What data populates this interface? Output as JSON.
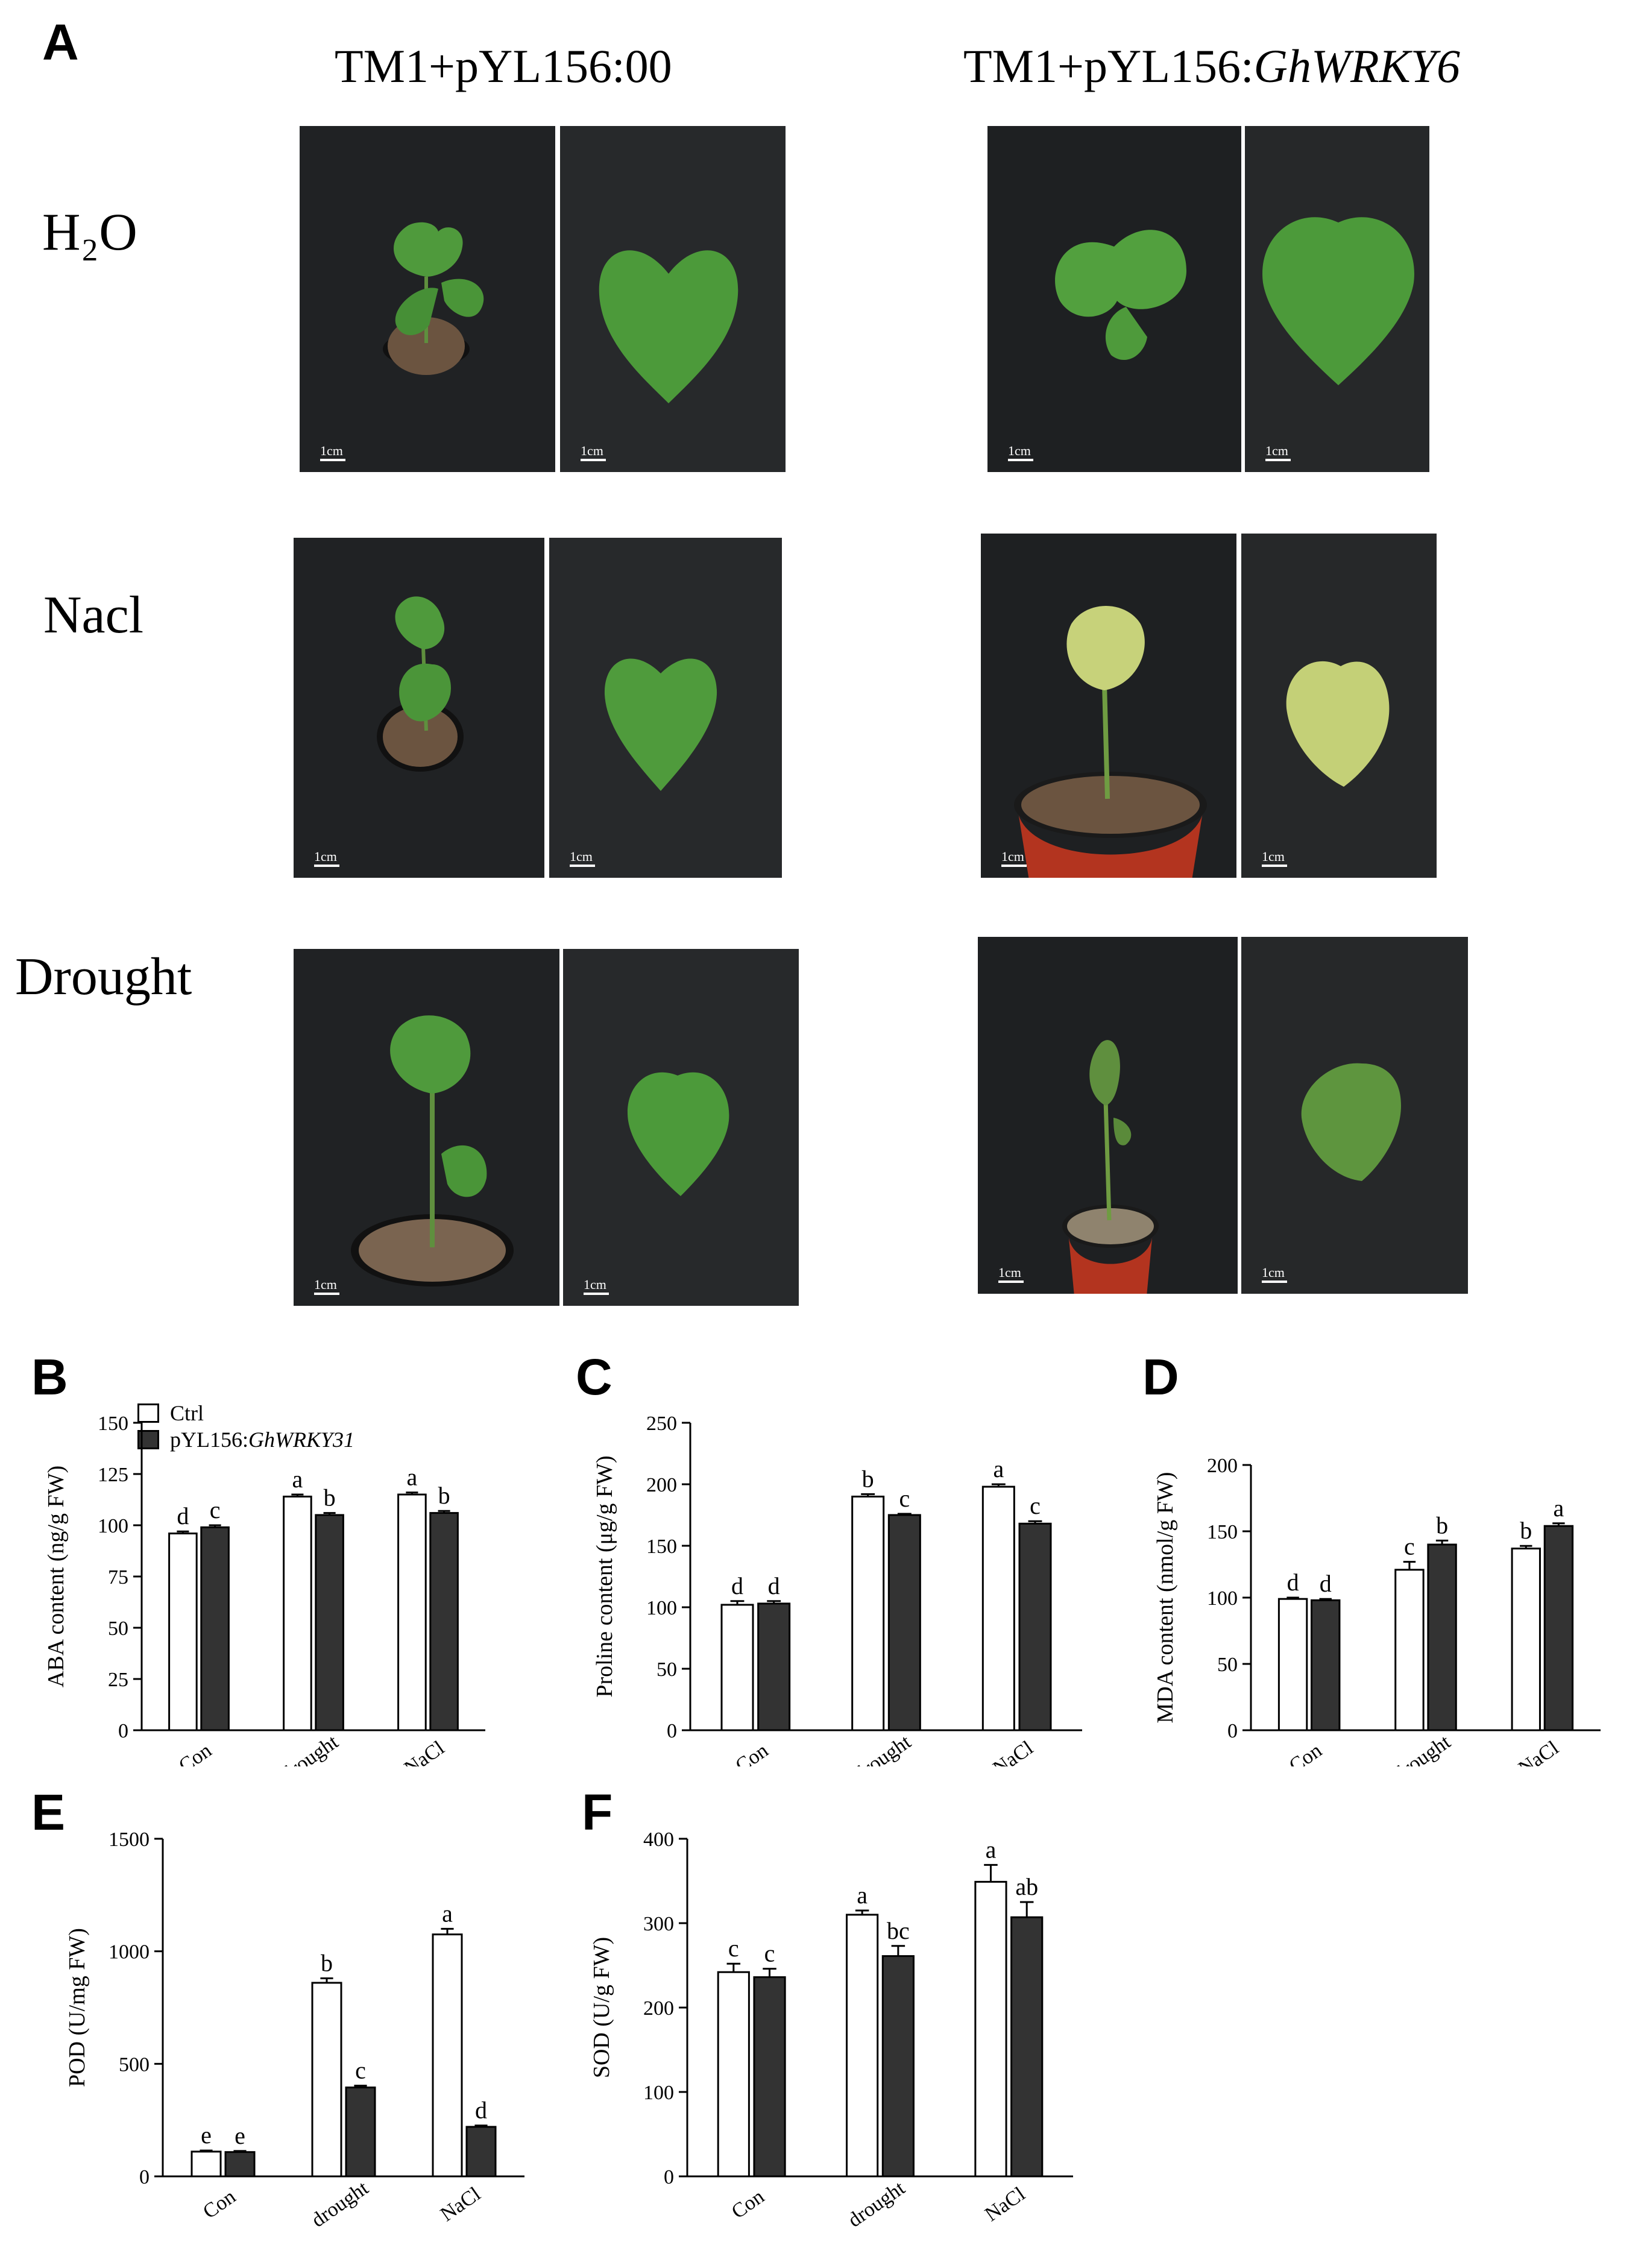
{
  "panel_labels": {
    "A": "A",
    "B": "B",
    "C": "C",
    "D": "D",
    "E": "E",
    "F": "F"
  },
  "figure_A": {
    "column_headers": [
      "TM1+pYL156:00",
      "TM1+pYL156:"
    ],
    "column_header_italic": "GhWRKY6",
    "row_headers": [
      "H₂O",
      "Nacl",
      "Drought"
    ],
    "scale_bar_label": "1cm",
    "photo_colors": {
      "background": "#1f2123",
      "leaf_healthy": "#4f9a3c",
      "leaf_chlorotic": "#c7d27a",
      "leaf_wilted": "#5f8f3e",
      "soil": "#6b5440",
      "pot": "#1b1b1b",
      "pot_red": "#b3341f"
    }
  },
  "legend": {
    "ctrl_label": "Ctrl",
    "treat_prefix": "pYL156:",
    "treat_italic": "GhWRKY31",
    "ctrl_color": "#ffffff",
    "treat_color": "#333333"
  },
  "chart_data": [
    {
      "id": "B",
      "type": "bar",
      "categories": [
        "Con",
        "drought",
        "NaCl"
      ],
      "series": [
        {
          "name": "Ctrl",
          "values": [
            96,
            114,
            115
          ],
          "errors": [
            1,
            1,
            1
          ],
          "letters": [
            "d",
            "a",
            "a"
          ]
        },
        {
          "name": "pYL156:GhWRKY31",
          "values": [
            99,
            105,
            106
          ],
          "errors": [
            1,
            1,
            1
          ],
          "letters": [
            "c",
            "b",
            "b"
          ]
        }
      ],
      "ylabel": "ABA content (ng/g FW)",
      "ylim": [
        0,
        150
      ],
      "yticks": [
        0,
        25,
        50,
        75,
        100,
        125,
        150
      ]
    },
    {
      "id": "C",
      "type": "bar",
      "categories": [
        "Con",
        "drought",
        "NaCl"
      ],
      "series": [
        {
          "name": "Ctrl",
          "values": [
            102,
            190,
            198
          ],
          "errors": [
            3,
            2,
            2
          ],
          "letters": [
            "d",
            "b",
            "a"
          ]
        },
        {
          "name": "pYL156:GhWRKY31",
          "values": [
            103,
            175,
            168
          ],
          "errors": [
            2,
            1,
            2
          ],
          "letters": [
            "d",
            "c",
            "c"
          ]
        }
      ],
      "ylabel": "Proline content (μg/g FW)",
      "ylim": [
        0,
        250
      ],
      "yticks": [
        0,
        50,
        100,
        150,
        200,
        250
      ]
    },
    {
      "id": "D",
      "type": "bar",
      "categories": [
        "Con",
        "drought",
        "NaCl"
      ],
      "series": [
        {
          "name": "Ctrl",
          "values": [
            99,
            121,
            137
          ],
          "errors": [
            1,
            6,
            2
          ],
          "letters": [
            "d",
            "c",
            "b"
          ]
        },
        {
          "name": "pYL156:GhWRKY31",
          "values": [
            98,
            140,
            154
          ],
          "errors": [
            1,
            3,
            2
          ],
          "letters": [
            "d",
            "b",
            "a"
          ]
        }
      ],
      "ylabel": "MDA content (nmol/g FW)",
      "ylim": [
        0,
        200
      ],
      "yticks": [
        0,
        50,
        100,
        150,
        200
      ]
    },
    {
      "id": "E",
      "type": "bar",
      "categories": [
        "Con",
        "drought",
        "NaCl"
      ],
      "series": [
        {
          "name": "Ctrl",
          "values": [
            110,
            860,
            1075
          ],
          "errors": [
            5,
            20,
            25
          ],
          "letters": [
            "e",
            "b",
            "a"
          ]
        },
        {
          "name": "pYL156:GhWRKY31",
          "values": [
            108,
            395,
            220
          ],
          "errors": [
            5,
            8,
            6
          ],
          "letters": [
            "e",
            "c",
            "d"
          ]
        }
      ],
      "ylabel": "POD (U/mg FW)",
      "ylim": [
        0,
        1500
      ],
      "yticks": [
        0,
        500,
        1000,
        1500
      ]
    },
    {
      "id": "F",
      "type": "bar",
      "categories": [
        "Con",
        "drought",
        "NaCl"
      ],
      "series": [
        {
          "name": "Ctrl",
          "values": [
            242,
            310,
            349
          ],
          "errors": [
            10,
            5,
            20
          ],
          "letters": [
            "c",
            "a",
            "a"
          ]
        },
        {
          "name": "pYL156:GhWRKY31",
          "values": [
            236,
            261,
            307
          ],
          "errors": [
            10,
            12,
            18
          ],
          "letters": [
            "c",
            "bc",
            "ab"
          ]
        }
      ],
      "ylabel": "SOD (U/g FW)",
      "ylim": [
        0,
        400
      ],
      "yticks": [
        0,
        100,
        200,
        300,
        400
      ]
    }
  ]
}
